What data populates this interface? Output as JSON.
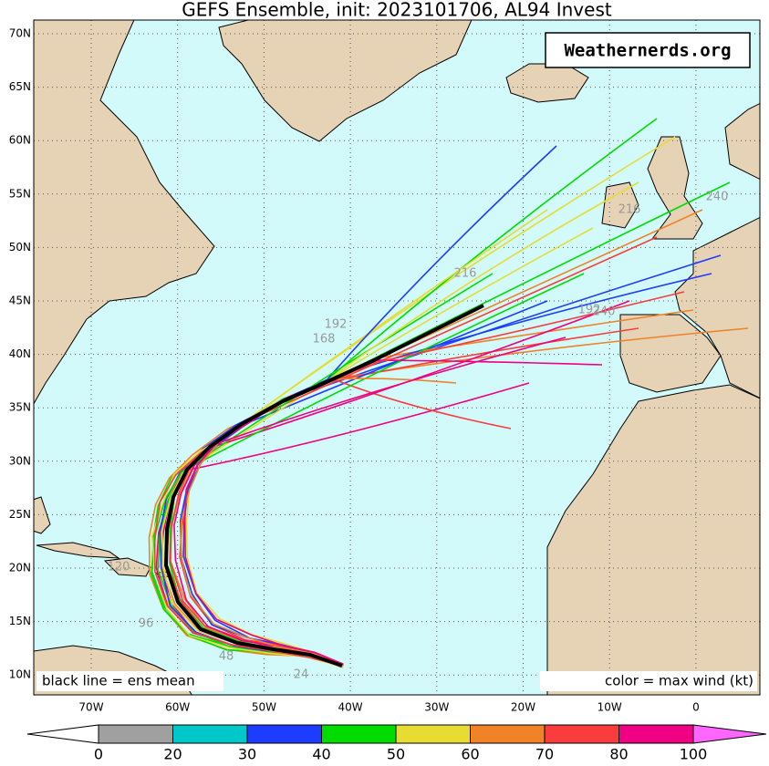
{
  "title": "GEFS Ensemble, init: 2023101706, AL94 Invest",
  "watermark": "Weathernerds.org",
  "mean_note": "black line = ens mean",
  "color_note": "color = max wind (kt)",
  "lat_labels": [
    "70N",
    "65N",
    "60N",
    "55N",
    "50N",
    "45N",
    "40N",
    "35N",
    "30N",
    "25N",
    "20N",
    "15N",
    "10N"
  ],
  "lon_labels": [
    "70W",
    "60W",
    "50W",
    "40W",
    "30W",
    "20W",
    "10W",
    "0"
  ],
  "colorbar": {
    "ticks": [
      0,
      20,
      30,
      40,
      50,
      60,
      70,
      80,
      100
    ],
    "colors": [
      "#a0a0a0",
      "#00c8c8",
      "#1e3cff",
      "#00dc00",
      "#e6dc32",
      "#f08228",
      "#fa3c3c",
      "#f00082"
    ],
    "under_color": "#ffffff",
    "over_color": "#ff66ff"
  },
  "hour_labels": [
    "240",
    "240",
    "216",
    "216",
    "192",
    "192",
    "168",
    "120",
    "96",
    "48",
    "24"
  ]
}
